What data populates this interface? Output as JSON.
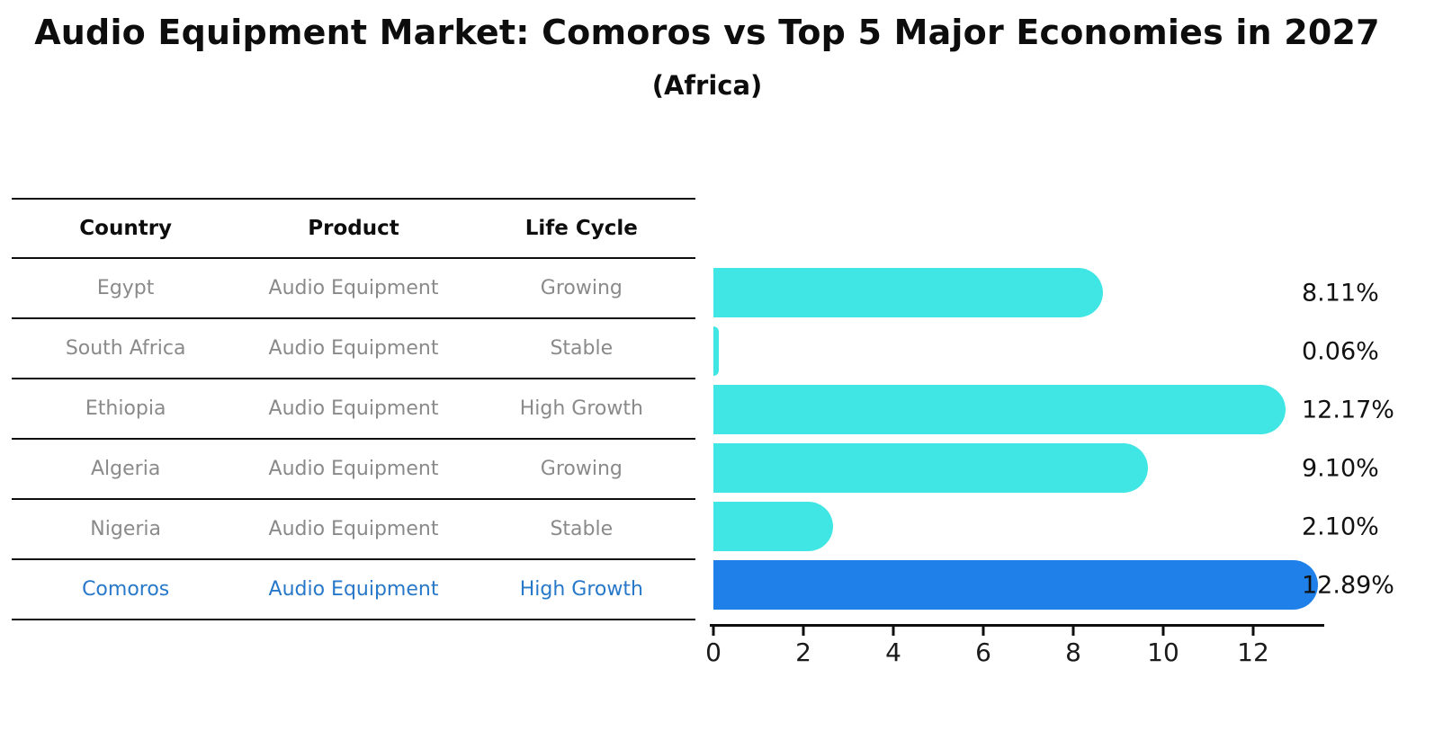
{
  "title": "Audio Equipment Market: Comoros vs Top 5 Major Economies in 2027",
  "subtitle": "(Africa)",
  "table": {
    "headers": {
      "country": "Country",
      "product": "Product",
      "life_cycle": "Life Cycle"
    },
    "rows": [
      {
        "country": "Egypt",
        "product": "Audio Equipment",
        "life_cycle": "Growing"
      },
      {
        "country": "South Africa",
        "product": "Audio Equipment",
        "life_cycle": "Stable"
      },
      {
        "country": "Ethiopia",
        "product": "Audio Equipment",
        "life_cycle": "High Growth"
      },
      {
        "country": "Algeria",
        "product": "Audio Equipment",
        "life_cycle": "Growing"
      },
      {
        "country": "Nigeria",
        "product": "Audio Equipment",
        "life_cycle": "Stable"
      },
      {
        "country": "Comoros",
        "product": "Audio Equipment",
        "life_cycle": "High Growth"
      }
    ],
    "highlight_index": 5
  },
  "chart_data": {
    "type": "bar",
    "orientation": "horizontal",
    "title": "Audio Equipment Market: Comoros vs Top 5 Major Economies in 2027 (Africa)",
    "xlabel": "",
    "ylabel": "",
    "categories": [
      "Egypt",
      "South Africa",
      "Ethiopia",
      "Algeria",
      "Nigeria",
      "Comoros"
    ],
    "values": [
      8.11,
      0.06,
      12.17,
      9.1,
      2.1,
      12.89
    ],
    "value_labels": [
      "8.11%",
      "0.06%",
      "12.17%",
      "9.10%",
      "2.10%",
      "12.89%"
    ],
    "xticks": [
      "0",
      "2",
      "4",
      "6",
      "8",
      "10",
      "12"
    ],
    "xlim": [
      0,
      13.5
    ],
    "grid": false,
    "legend": null,
    "bar_color": "#40E6E4",
    "highlight_color": "#1E80E8",
    "highlight_index": 5
  },
  "colors": {
    "background": "#FFFFFF",
    "table_text": "#8A8A8A",
    "header_text": "#0D0D0D",
    "highlight_text": "#2878C9",
    "axis": "#0D0D0D"
  }
}
